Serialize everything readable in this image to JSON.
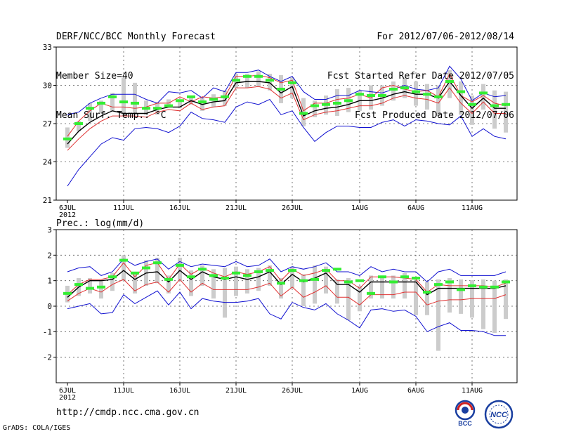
{
  "header": {
    "title": "DERF/NCC/BCC Monthly Forecast",
    "member_size": "Member Size=40",
    "variable": "Mean Surf. Temp.: °C",
    "period": "For 2012/07/06-2012/08/14",
    "started": "Fcst Started Refer Date 2012/07/05",
    "produced": "Fcst Produced Date 2012/07/06"
  },
  "footer": {
    "url": "http://cmdp.ncc.cma.gov.cn",
    "credit": "GrADS: COLA/IGES",
    "logo_bcc": "BCC",
    "logo_ncc": "NCC"
  },
  "colors": {
    "envelope": "#1010d0",
    "spread": "#e03030",
    "mean": "#000000",
    "box": "#cccccc",
    "median": "#33ee33",
    "grid": "#555555"
  },
  "chart_data": [
    {
      "type": "line",
      "title": "Mean Surf. Temp.: °C",
      "x_tick_labels": [
        "6JUL",
        "11JUL",
        "16JUL",
        "21JUL",
        "26JUL",
        "1AUG",
        "6AUG",
        "11AUG"
      ],
      "x_tick_days": [
        0,
        5,
        10,
        15,
        20,
        26,
        31,
        36
      ],
      "year_label": "2012",
      "ylim": [
        21,
        33
      ],
      "y_ticks": [
        21,
        24,
        27,
        30,
        33
      ],
      "days": 40,
      "series": [
        {
          "name": "max",
          "values": [
            27.7,
            27.9,
            28.6,
            29.0,
            29.3,
            29.3,
            29.3,
            28.9,
            28.6,
            29.5,
            29.4,
            29.6,
            29.0,
            29.8,
            29.5,
            31.0,
            31.0,
            31.2,
            30.7,
            30.3,
            30.7,
            29.5,
            28.9,
            28.9,
            29.2,
            29.2,
            29.6,
            29.5,
            29.4,
            29.7,
            30.0,
            29.7,
            29.6,
            29.8,
            31.5,
            30.5,
            28.8,
            29.4,
            29.1,
            29.2
          ]
        },
        {
          "name": "upper",
          "values": [
            26.0,
            27.2,
            28.0,
            28.6,
            28.3,
            28.3,
            28.2,
            28.3,
            28.6,
            28.6,
            29.1,
            28.7,
            29.1,
            29.0,
            29.1,
            30.7,
            30.7,
            30.8,
            30.6,
            30.2,
            30.4,
            28.0,
            28.6,
            28.6,
            28.9,
            29.0,
            29.3,
            29.0,
            29.8,
            30.0,
            29.7,
            29.5,
            29.6,
            29.1,
            30.9,
            29.2,
            28.7,
            29.2,
            28.6,
            28.4
          ]
        },
        {
          "name": "mean",
          "values": [
            25.4,
            26.4,
            27.1,
            27.6,
            28.0,
            27.8,
            27.8,
            27.8,
            28.1,
            28.3,
            28.3,
            28.8,
            28.5,
            28.7,
            28.8,
            30.2,
            30.3,
            30.3,
            30.2,
            29.4,
            29.9,
            27.6,
            28.0,
            28.2,
            28.3,
            28.5,
            28.8,
            28.8,
            29.0,
            29.3,
            29.5,
            29.3,
            29.3,
            29.0,
            30.3,
            29.2,
            28.2,
            29.0,
            28.2,
            28.2
          ]
        },
        {
          "name": "lower",
          "values": [
            24.9,
            25.8,
            26.6,
            27.2,
            27.6,
            27.6,
            27.6,
            27.5,
            27.9,
            28.1,
            28.0,
            28.6,
            28.1,
            28.3,
            28.4,
            29.8,
            29.8,
            29.9,
            29.7,
            29.0,
            29.4,
            27.3,
            27.7,
            27.9,
            28.0,
            28.2,
            28.4,
            28.4,
            28.6,
            29.0,
            29.2,
            29.0,
            28.9,
            28.6,
            29.8,
            28.6,
            27.8,
            28.7,
            27.8,
            27.8
          ]
        },
        {
          "name": "min",
          "values": [
            22.1,
            23.4,
            24.4,
            25.4,
            25.9,
            25.7,
            26.6,
            26.7,
            26.6,
            26.3,
            26.8,
            27.9,
            27.4,
            27.3,
            27.1,
            28.3,
            28.7,
            28.5,
            28.9,
            27.7,
            28.0,
            26.7,
            25.6,
            26.3,
            26.8,
            26.8,
            26.7,
            26.7,
            27.1,
            27.3,
            26.8,
            27.3,
            27.2,
            27.0,
            26.9,
            27.6,
            26.0,
            26.6,
            26.0,
            25.8
          ]
        }
      ],
      "box_lo": [
        25.1,
        26.4,
        27.2,
        27.8,
        28.0,
        27.7,
        27.7,
        27.7,
        27.7,
        28.3,
        28.2,
        28.5,
        28.0,
        28.3,
        28.4,
        29.8,
        29.8,
        29.9,
        29.6,
        28.6,
        29.0,
        26.8,
        27.5,
        27.7,
        27.6,
        27.9,
        28.0,
        28.1,
        28.4,
        28.8,
        29.0,
        28.4,
        28.1,
        27.6,
        29.0,
        27.7,
        26.9,
        28.1,
        26.6,
        26.3
      ],
      "box_hi": [
        26.7,
        27.2,
        28.6,
        28.8,
        29.4,
        30.6,
        30.2,
        28.8,
        28.6,
        28.9,
        28.9,
        29.2,
        29.0,
        29.3,
        29.6,
        30.9,
        30.9,
        31.1,
        30.9,
        30.8,
        30.6,
        29.0,
        28.8,
        29.2,
        29.7,
        29.8,
        29.6,
        30.0,
        30.0,
        30.3,
        30.6,
        30.3,
        30.1,
        30.0,
        31.2,
        30.3,
        29.2,
        30.1,
        29.6,
        29.5
      ],
      "median": [
        25.8,
        27.0,
        28.2,
        28.6,
        29.1,
        28.7,
        28.6,
        28.2,
        28.2,
        28.4,
        28.8,
        29.1,
        28.7,
        28.9,
        29.1,
        30.4,
        30.7,
        30.7,
        30.4,
        29.7,
        30.2,
        27.8,
        28.4,
        28.5,
        28.6,
        28.8,
        29.3,
        29.2,
        29.2,
        29.7,
        29.8,
        29.5,
        29.3,
        29.1,
        30.3,
        29.5,
        28.5,
        29.4,
        28.4,
        28.5
      ]
    },
    {
      "type": "line",
      "title": "Prec.: log(mm/d)",
      "x_tick_labels": [
        "6JUL",
        "11JUL",
        "16JUL",
        "21JUL",
        "26JUL",
        "1AUG",
        "6AUG",
        "11AUG"
      ],
      "x_tick_days": [
        0,
        5,
        10,
        15,
        20,
        26,
        31,
        36
      ],
      "year_label": "2012",
      "ylim": [
        -3,
        3
      ],
      "y_ticks": [
        -2,
        -1,
        0,
        1,
        2,
        3
      ],
      "days": 40,
      "series": [
        {
          "name": "max",
          "values": [
            1.35,
            1.5,
            1.55,
            1.2,
            1.35,
            1.85,
            1.6,
            1.75,
            1.85,
            1.45,
            1.75,
            1.55,
            1.65,
            1.6,
            1.55,
            1.75,
            1.55,
            1.6,
            1.85,
            1.35,
            1.55,
            1.45,
            1.55,
            1.7,
            1.35,
            1.35,
            1.2,
            1.55,
            1.35,
            1.45,
            1.35,
            1.35,
            0.95,
            1.35,
            1.45,
            1.2,
            1.2,
            1.2,
            1.2,
            1.35
          ]
        },
        {
          "name": "upper",
          "values": [
            0.45,
            0.85,
            1.05,
            1.05,
            1.15,
            1.7,
            1.15,
            1.6,
            1.7,
            1.05,
            1.65,
            1.25,
            1.5,
            1.3,
            1.15,
            1.35,
            1.25,
            1.35,
            1.55,
            1.0,
            1.45,
            1.2,
            1.3,
            1.45,
            1.0,
            1.0,
            0.7,
            1.15,
            1.15,
            1.15,
            1.1,
            1.05,
            0.55,
            0.85,
            0.8,
            0.8,
            0.8,
            0.8,
            0.75,
            0.9
          ]
        },
        {
          "name": "mean",
          "values": [
            0.35,
            0.75,
            1.0,
            1.0,
            1.05,
            1.4,
            1.05,
            1.3,
            1.35,
            0.95,
            1.4,
            1.05,
            1.35,
            1.15,
            1.05,
            1.15,
            1.05,
            1.15,
            1.35,
            0.85,
            1.25,
            0.95,
            1.1,
            1.3,
            0.85,
            0.85,
            0.55,
            0.95,
            0.95,
            0.95,
            0.95,
            0.95,
            0.45,
            0.7,
            0.7,
            0.7,
            0.7,
            0.7,
            0.7,
            0.8
          ]
        },
        {
          "name": "lower",
          "values": [
            0.2,
            0.5,
            0.7,
            0.55,
            0.85,
            1.05,
            0.6,
            0.85,
            0.95,
            0.55,
            1.05,
            0.55,
            0.9,
            0.65,
            0.65,
            0.65,
            0.65,
            0.75,
            0.9,
            0.4,
            0.75,
            0.35,
            0.55,
            0.8,
            0.35,
            0.35,
            0.05,
            0.45,
            0.45,
            0.45,
            0.55,
            0.55,
            0.05,
            0.2,
            0.25,
            0.25,
            0.3,
            0.3,
            0.3,
            0.45
          ]
        },
        {
          "name": "min",
          "values": [
            -0.1,
            0.0,
            0.1,
            -0.3,
            -0.25,
            0.45,
            0.1,
            0.35,
            0.6,
            0.05,
            0.55,
            -0.1,
            0.3,
            0.2,
            0.15,
            0.15,
            0.2,
            0.3,
            -0.3,
            -0.5,
            0.15,
            -0.05,
            -0.15,
            0.1,
            -0.3,
            -0.55,
            -0.85,
            -0.15,
            -0.1,
            -0.2,
            -0.15,
            -0.4,
            -1.0,
            -0.8,
            -0.65,
            -0.95,
            -0.95,
            -1.0,
            -1.15,
            -1.15
          ]
        }
      ],
      "box_lo": [
        0.15,
        0.4,
        0.5,
        0.3,
        0.6,
        1.0,
        0.5,
        0.8,
        0.9,
        0.5,
        1.0,
        0.4,
        0.8,
        0.3,
        -0.45,
        0.4,
        0.5,
        0.6,
        0.8,
        0.3,
        0.7,
        0.0,
        0.1,
        0.5,
        0.1,
        -0.55,
        -0.2,
        0.3,
        0.3,
        0.3,
        0.3,
        -0.35,
        -0.35,
        -1.75,
        -0.25,
        -0.3,
        -0.45,
        -0.9,
        -1.05,
        -0.5
      ],
      "box_hi": [
        0.8,
        1.1,
        1.1,
        1.0,
        1.3,
        2.0,
        1.3,
        1.8,
        1.9,
        1.2,
        1.9,
        1.4,
        1.6,
        1.45,
        1.5,
        1.55,
        1.45,
        1.5,
        1.6,
        1.1,
        1.55,
        1.25,
        1.6,
        1.55,
        1.05,
        1.1,
        0.8,
        1.2,
        1.2,
        1.2,
        1.3,
        1.0,
        0.95,
        1.05,
        1.1,
        1.05,
        1.0,
        1.05,
        1.0,
        1.05
      ],
      "median": [
        0.5,
        0.85,
        0.7,
        0.75,
        1.15,
        1.8,
        1.3,
        1.5,
        1.7,
        1.05,
        1.6,
        1.15,
        1.45,
        1.2,
        1.1,
        1.3,
        1.2,
        1.35,
        1.4,
        0.9,
        1.4,
        1.0,
        1.05,
        1.4,
        1.45,
        0.95,
        1.0,
        0.5,
        1.15,
        0.95,
        1.15,
        1.1,
        0.55,
        0.85,
        0.95,
        0.65,
        0.8,
        0.75,
        0.75,
        0.95
      ]
    }
  ]
}
